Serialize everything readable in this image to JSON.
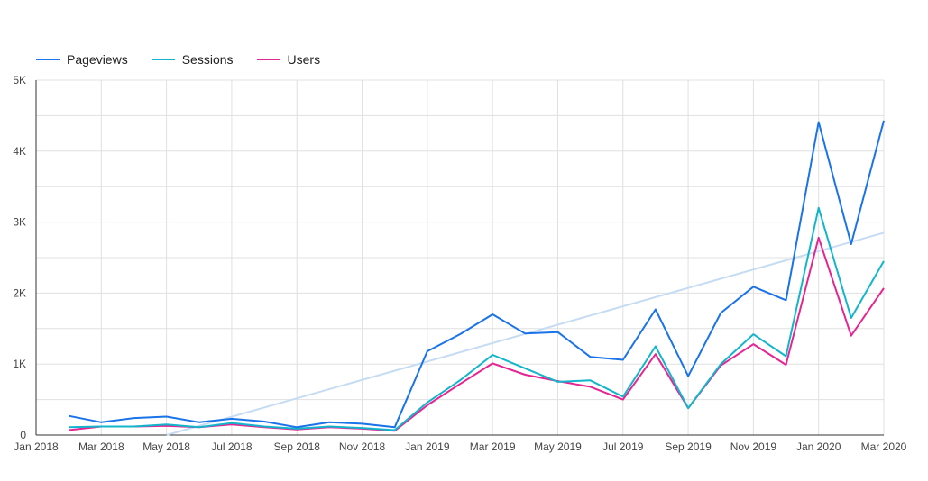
{
  "chart_data": {
    "type": "line",
    "title": "",
    "xlabel": "",
    "ylabel": "",
    "legend_position": "top-left",
    "grid": true,
    "x": [
      "2018-02",
      "2018-03",
      "2018-04",
      "2018-05",
      "2018-06",
      "2018-07",
      "2018-08",
      "2018-09",
      "2018-10",
      "2018-11",
      "2018-12",
      "2019-01",
      "2019-02",
      "2019-03",
      "2019-04",
      "2019-05",
      "2019-06",
      "2019-07",
      "2019-08",
      "2019-09",
      "2019-10",
      "2019-11",
      "2019-12",
      "2020-01",
      "2020-02",
      "2020-03"
    ],
    "x_ticks": [
      {
        "date": "2018-01",
        "label": "Jan 2018"
      },
      {
        "date": "2018-03",
        "label": "Mar 2018"
      },
      {
        "date": "2018-05",
        "label": "May 2018"
      },
      {
        "date": "2018-07",
        "label": "Jul 2018"
      },
      {
        "date": "2018-09",
        "label": "Sep 2018"
      },
      {
        "date": "2018-11",
        "label": "Nov 2018"
      },
      {
        "date": "2019-01",
        "label": "Jan 2019"
      },
      {
        "date": "2019-03",
        "label": "Mar 2019"
      },
      {
        "date": "2019-05",
        "label": "May 2019"
      },
      {
        "date": "2019-07",
        "label": "Jul 2019"
      },
      {
        "date": "2019-09",
        "label": "Sep 2019"
      },
      {
        "date": "2019-11",
        "label": "Nov 2019"
      },
      {
        "date": "2020-01",
        "label": "Jan 2020"
      },
      {
        "date": "2020-03",
        "label": "Mar 2020"
      }
    ],
    "xlim": [
      "2018-01",
      "2020-03"
    ],
    "ylim": [
      0,
      5000
    ],
    "y_ticks": [
      {
        "value": 0,
        "label": "0"
      },
      {
        "value": 1000,
        "label": "1K"
      },
      {
        "value": 2000,
        "label": "2K"
      },
      {
        "value": 3000,
        "label": "3K"
      },
      {
        "value": 4000,
        "label": "4K"
      },
      {
        "value": 5000,
        "label": "5K"
      }
    ],
    "series": [
      {
        "name": "Pageviews",
        "color": "#1a73e8",
        "values": [
          270,
          180,
          240,
          260,
          180,
          230,
          190,
          110,
          180,
          160,
          110,
          1180,
          1420,
          1700,
          1430,
          1450,
          1100,
          1060,
          1770,
          830,
          1720,
          2090,
          1900,
          4410,
          2690,
          4430
        ]
      },
      {
        "name": "Sessions",
        "color": "#12b5cb",
        "values": [
          110,
          120,
          120,
          150,
          110,
          170,
          120,
          90,
          120,
          100,
          70,
          460,
          770,
          1130,
          940,
          750,
          770,
          540,
          1250,
          380,
          1000,
          1420,
          1110,
          3200,
          1650,
          2450
        ]
      },
      {
        "name": "Users",
        "color": "#e52592",
        "values": [
          70,
          120,
          120,
          130,
          110,
          150,
          110,
          80,
          110,
          90,
          60,
          420,
          720,
          1010,
          850,
          760,
          680,
          500,
          1140,
          380,
          980,
          1280,
          990,
          2780,
          1400,
          2070
        ]
      }
    ],
    "trendline": {
      "color": "#c6dcf2",
      "from": {
        "date": "2018-05",
        "value": 0
      },
      "to": {
        "date": "2020-03",
        "value": 2850
      }
    }
  }
}
